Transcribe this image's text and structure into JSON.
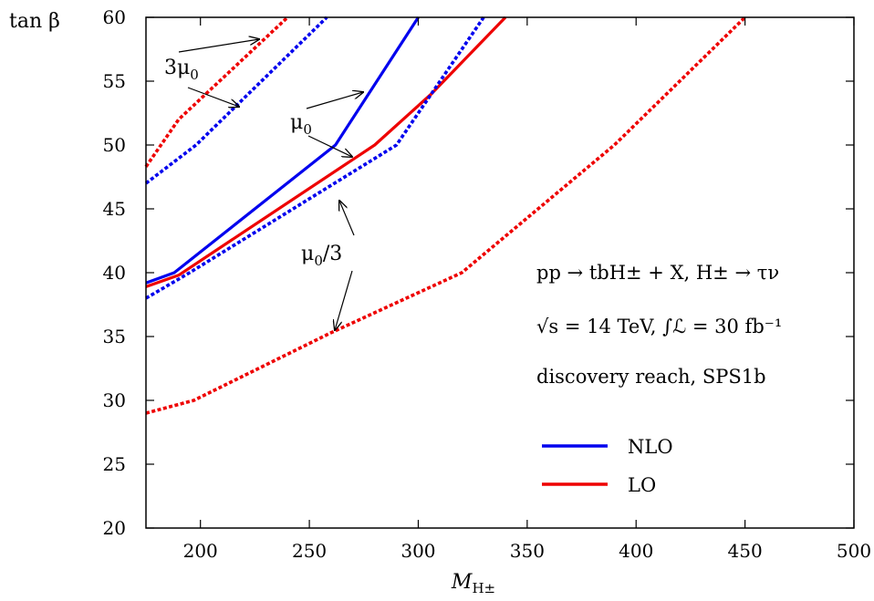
{
  "chart_data": {
    "type": "line",
    "xlabel": "M",
    "xlabel_sub": "H±",
    "ylabel": "tan β",
    "xlim": [
      175,
      500
    ],
    "ylim": [
      20,
      60
    ],
    "x_ticks": [
      200,
      250,
      300,
      350,
      400,
      450,
      500
    ],
    "y_ticks": [
      20,
      25,
      30,
      35,
      40,
      45,
      50,
      55,
      60
    ],
    "x_tick_labels": [
      "200",
      "250",
      "300",
      "350",
      "400",
      "450",
      "500"
    ],
    "y_tick_labels": [
      "20",
      "25",
      "30",
      "35",
      "40",
      "45",
      "50",
      "55",
      "60"
    ],
    "grid": false,
    "legend_position": "bottom-right",
    "colors": {
      "NLO": "#0000ee",
      "LO": "#ee0000"
    },
    "series": [
      {
        "name": "NLO",
        "color": "#0000ee",
        "style": "solid",
        "points": [
          [
            175,
            39.2
          ],
          [
            188,
            40
          ],
          [
            262,
            50
          ],
          [
            300,
            60
          ]
        ]
      },
      {
        "name": "LO",
        "color": "#ee0000",
        "style": "solid",
        "points": [
          [
            175,
            38.9
          ],
          [
            190,
            39.8
          ],
          [
            280,
            50
          ],
          [
            306,
            54
          ],
          [
            340,
            60
          ]
        ]
      },
      {
        "name": "",
        "color": "#0000ee",
        "style": "dotted",
        "points": [
          [
            175,
            47
          ],
          [
            198,
            50
          ],
          [
            258,
            60
          ]
        ]
      },
      {
        "name": "",
        "color": "#ee0000",
        "style": "dotted",
        "points": [
          [
            175,
            48.3
          ],
          [
            190,
            52
          ],
          [
            240,
            60
          ]
        ]
      },
      {
        "name": "",
        "color": "#0000ee",
        "style": "dotted",
        "points": [
          [
            175,
            38
          ],
          [
            195,
            40
          ],
          [
            290,
            50
          ],
          [
            330,
            60
          ]
        ]
      },
      {
        "name": "",
        "color": "#ee0000",
        "style": "dotted",
        "points": [
          [
            175,
            29
          ],
          [
            197,
            30
          ],
          [
            260,
            35.3
          ],
          [
            320,
            40
          ],
          [
            390,
            50
          ],
          [
            450,
            60
          ]
        ]
      }
    ],
    "legend": [
      {
        "label": "NLO",
        "color": "#0000ee"
      },
      {
        "label": "LO",
        "color": "#ee0000"
      }
    ],
    "annotations": {
      "three_mu0": "3μ",
      "three_mu0_sub": "0",
      "mu0": "μ",
      "mu0_sub": "0",
      "mu0_over3_main": "μ",
      "mu0_over3_sub": "0",
      "mu0_over3_tail": "/3"
    },
    "info_lines": {
      "line1": "pp → tbH± + X, H± → τν",
      "line2": "√s = 14 TeV, ∫ℒ = 30 fb⁻¹",
      "line3": "discovery reach, SPS1b"
    }
  }
}
